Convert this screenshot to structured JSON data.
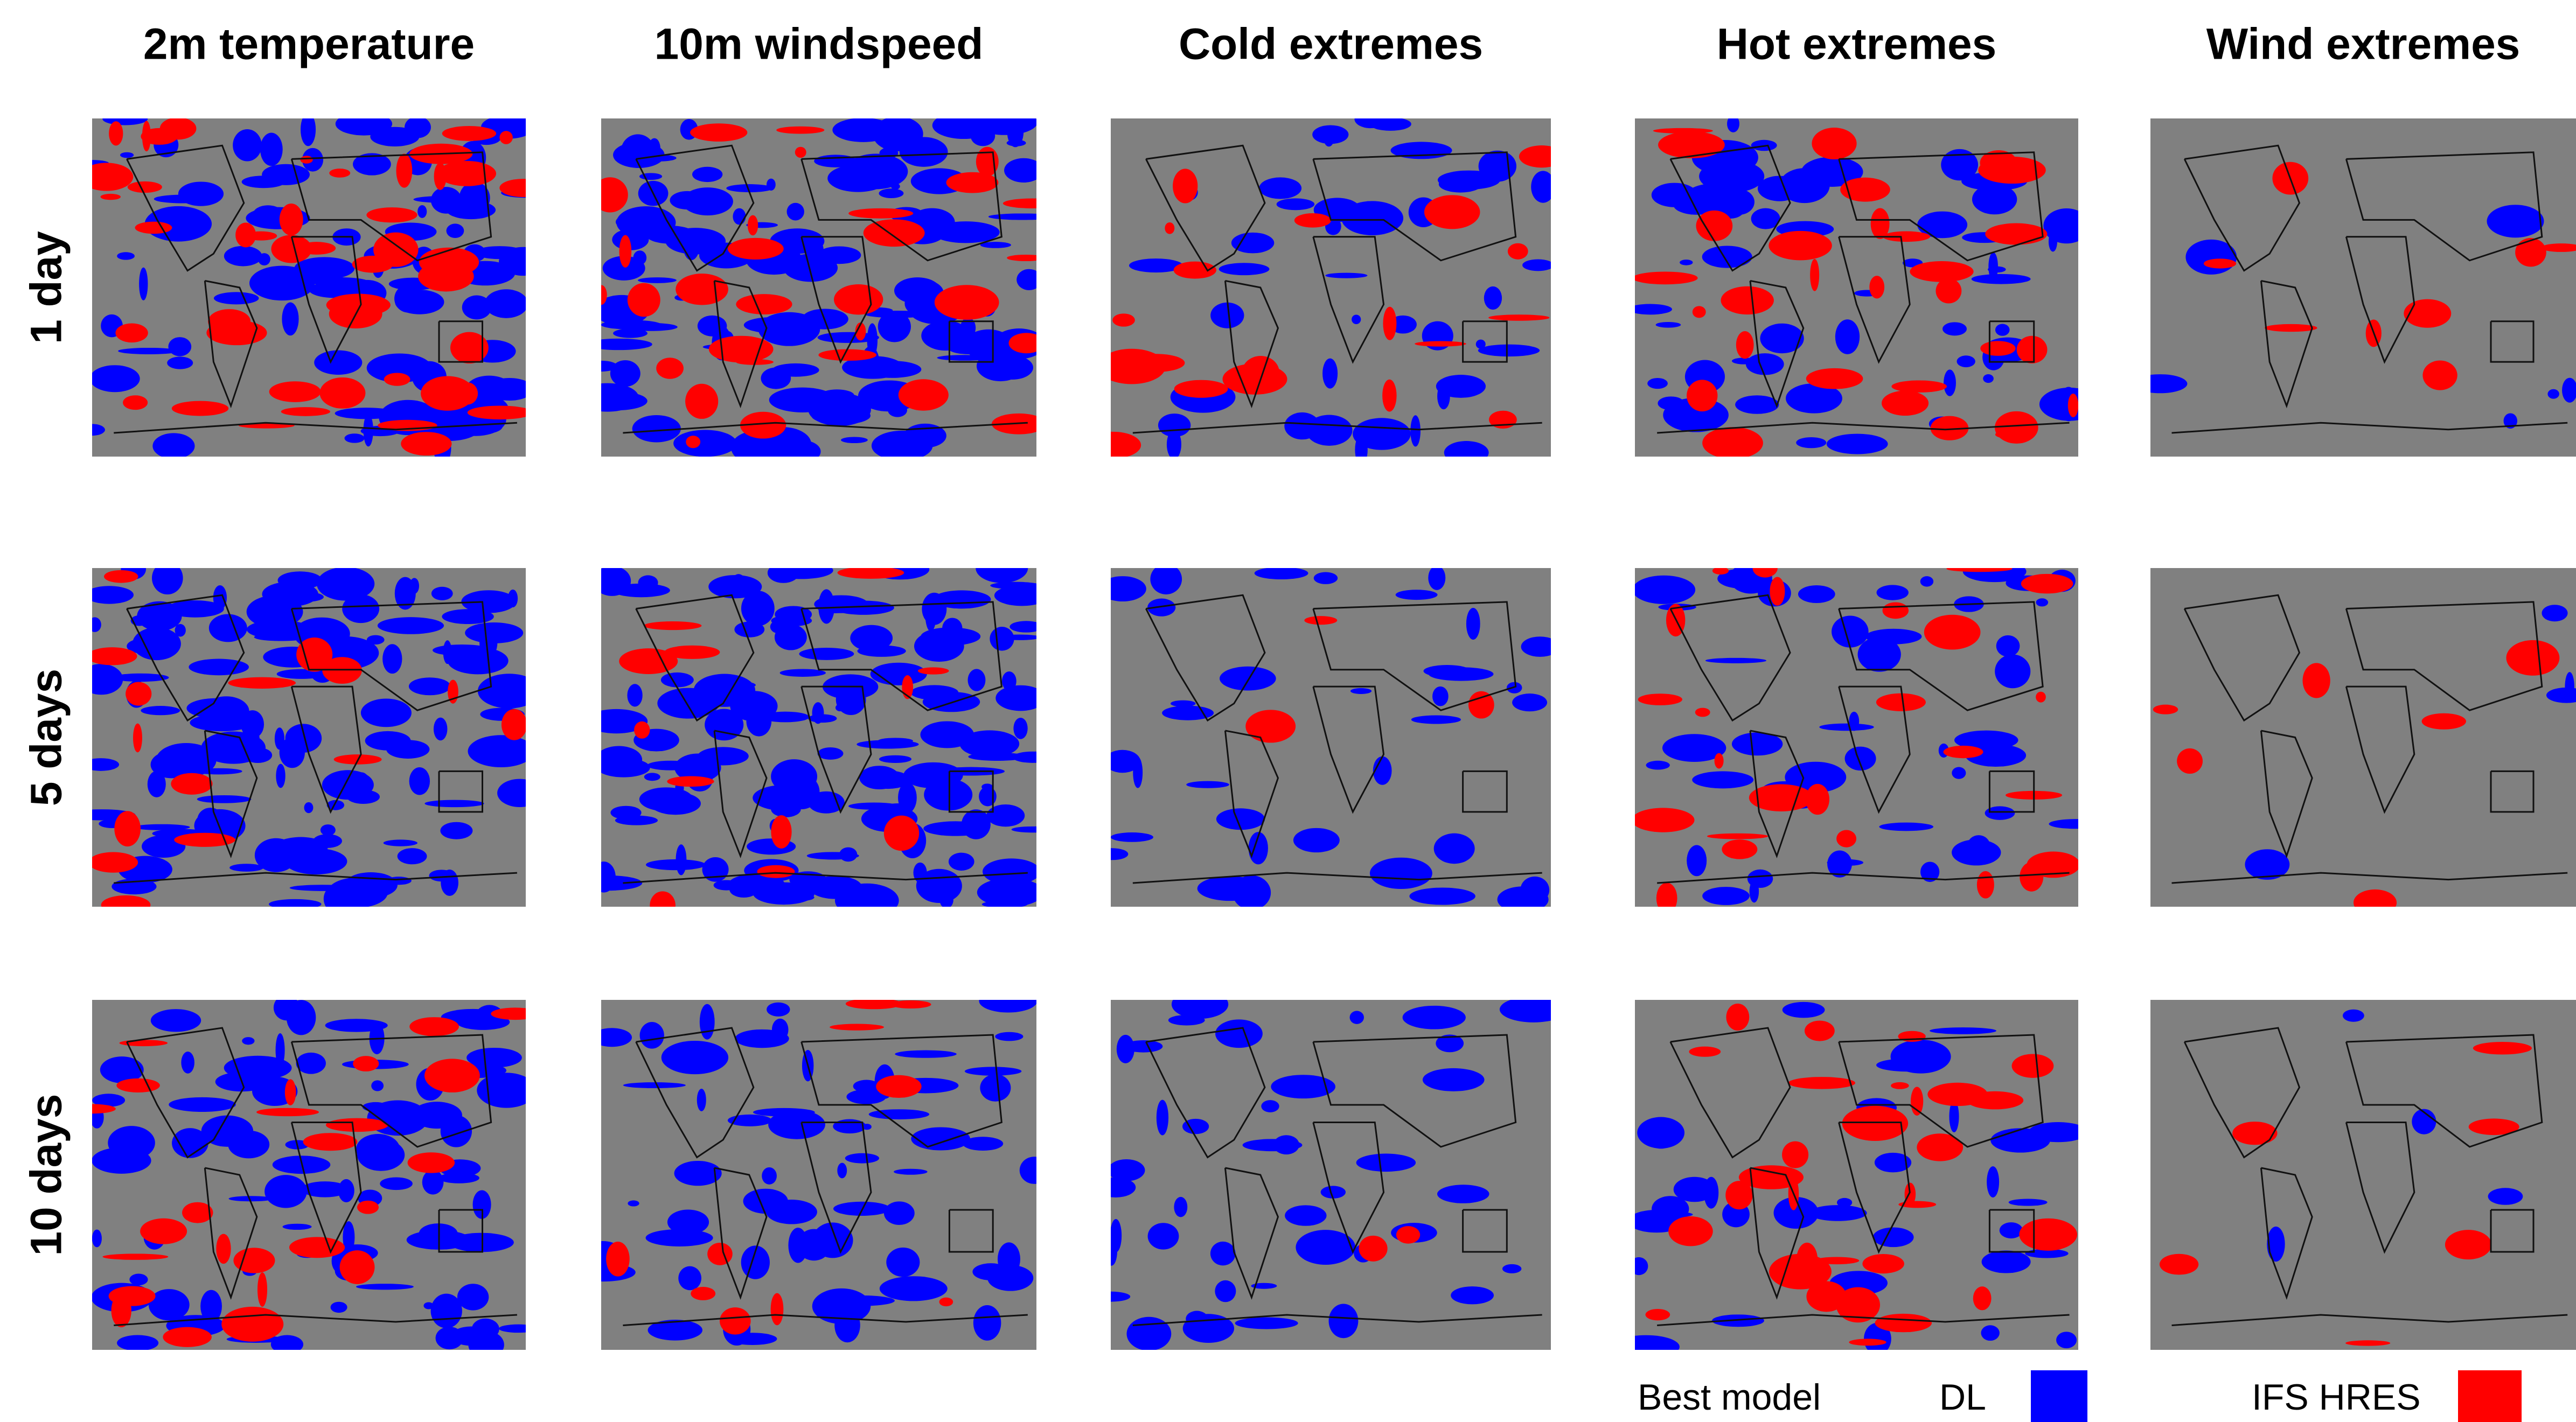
{
  "column_titles": [
    "2m temperature",
    "10m windspeed",
    "Cold extremes",
    "Hot extremes",
    "Wind extremes"
  ],
  "row_labels": [
    "1 day",
    "5 days",
    "10 days"
  ],
  "legend": {
    "title": "Best model",
    "items": [
      {
        "label": "DL",
        "color": "#0000ff"
      },
      {
        "label": "IFS HRES",
        "color": "#ff0000"
      }
    ]
  }
}
